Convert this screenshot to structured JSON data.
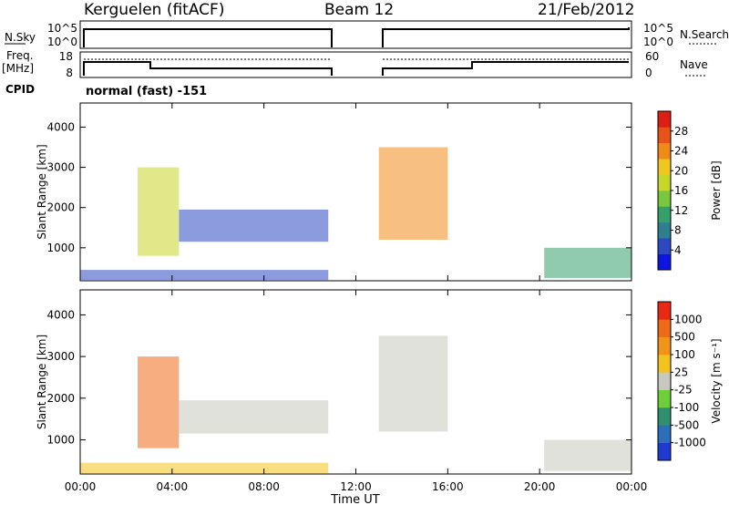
{
  "header": {
    "station": "Kerguelen (fitACF)",
    "beam": "Beam 12",
    "date": "21/Feb/2012"
  },
  "sky_panel": {
    "left_label": "N.Sky",
    "right_label": "N.Search",
    "ticks_left": [
      "10^5",
      "10^0"
    ],
    "ticks_right": [
      "10^5",
      "10^0"
    ]
  },
  "freq_panel": {
    "left_label_1": "Freq.",
    "left_label_2": "[MHz]",
    "right_label": "Nave",
    "ticks_left": [
      "18",
      "8"
    ],
    "ticks_right": [
      "60",
      "0"
    ]
  },
  "cpid": {
    "label": "CPID",
    "value": "normal (fast) -151"
  },
  "chart_data": [
    {
      "type": "heatmap",
      "title": "",
      "ylabel": "Slant Range [km]",
      "xlabel": "",
      "ylim": [
        180,
        4600
      ],
      "y_ticks": [
        "1000",
        "2000",
        "3000",
        "4000"
      ],
      "colorbar": {
        "label": "Power [dB]",
        "ticks": [
          "4",
          "8",
          "12",
          "16",
          "20",
          "24",
          "28"
        ],
        "colors": [
          "#0b16e0",
          "#2c49c2",
          "#2f7f92",
          "#35a06c",
          "#78c73e",
          "#c6d62a",
          "#f2c71b",
          "#f08a18",
          "#e85418",
          "#dc1e14"
        ]
      },
      "echo_regions": [
        {
          "t_start": 0.0,
          "t_end": 10.8,
          "r_min": 200,
          "r_max": 450,
          "color": "#2c49c2"
        },
        {
          "t_start": 2.5,
          "t_end": 4.3,
          "r_min": 800,
          "r_max": 3000,
          "color": "#c6d62a"
        },
        {
          "t_start": 4.3,
          "t_end": 10.8,
          "r_min": 1150,
          "r_max": 1950,
          "color": "#2c49c2"
        },
        {
          "t_start": 13.0,
          "t_end": 16.0,
          "r_min": 1200,
          "r_max": 3500,
          "color": "#f08a18"
        },
        {
          "t_start": 20.2,
          "t_end": 24.0,
          "r_min": 250,
          "r_max": 1000,
          "color": "#35a06c"
        }
      ]
    },
    {
      "type": "heatmap",
      "title": "",
      "ylabel": "Slant Range [km]",
      "xlabel": "Time UT",
      "ylim": [
        180,
        4600
      ],
      "y_ticks": [
        "1000",
        "2000",
        "3000",
        "4000"
      ],
      "x_ticks": [
        "00:00",
        "04:00",
        "08:00",
        "12:00",
        "16:00",
        "20:00",
        "00:00"
      ],
      "colorbar": {
        "label": "Velocity [m s⁻¹]",
        "ticks": [
          "1000",
          "500",
          "100",
          "25",
          "-25",
          "-100",
          "-500",
          "-1000"
        ],
        "colors": [
          "#1e3ad0",
          "#2c6fb8",
          "#2f8f6e",
          "#6ecf3a",
          "#c8c8c0",
          "#f4c21c",
          "#f29418",
          "#ef6a16",
          "#e82a14"
        ]
      },
      "echo_regions": [
        {
          "t_start": 0.0,
          "t_end": 10.8,
          "r_min": 200,
          "r_max": 450,
          "color": "#f4c21c"
        },
        {
          "t_start": 2.5,
          "t_end": 4.3,
          "r_min": 800,
          "r_max": 3000,
          "color": "#ef6a16"
        },
        {
          "t_start": 4.3,
          "t_end": 10.8,
          "r_min": 1150,
          "r_max": 1950,
          "color": "#c8c8c0"
        },
        {
          "t_start": 13.0,
          "t_end": 16.0,
          "r_min": 1200,
          "r_max": 3500,
          "color": "#c8c8c0"
        },
        {
          "t_start": 20.2,
          "t_end": 24.0,
          "r_min": 250,
          "r_max": 1000,
          "color": "#c8c8c0"
        }
      ]
    }
  ]
}
